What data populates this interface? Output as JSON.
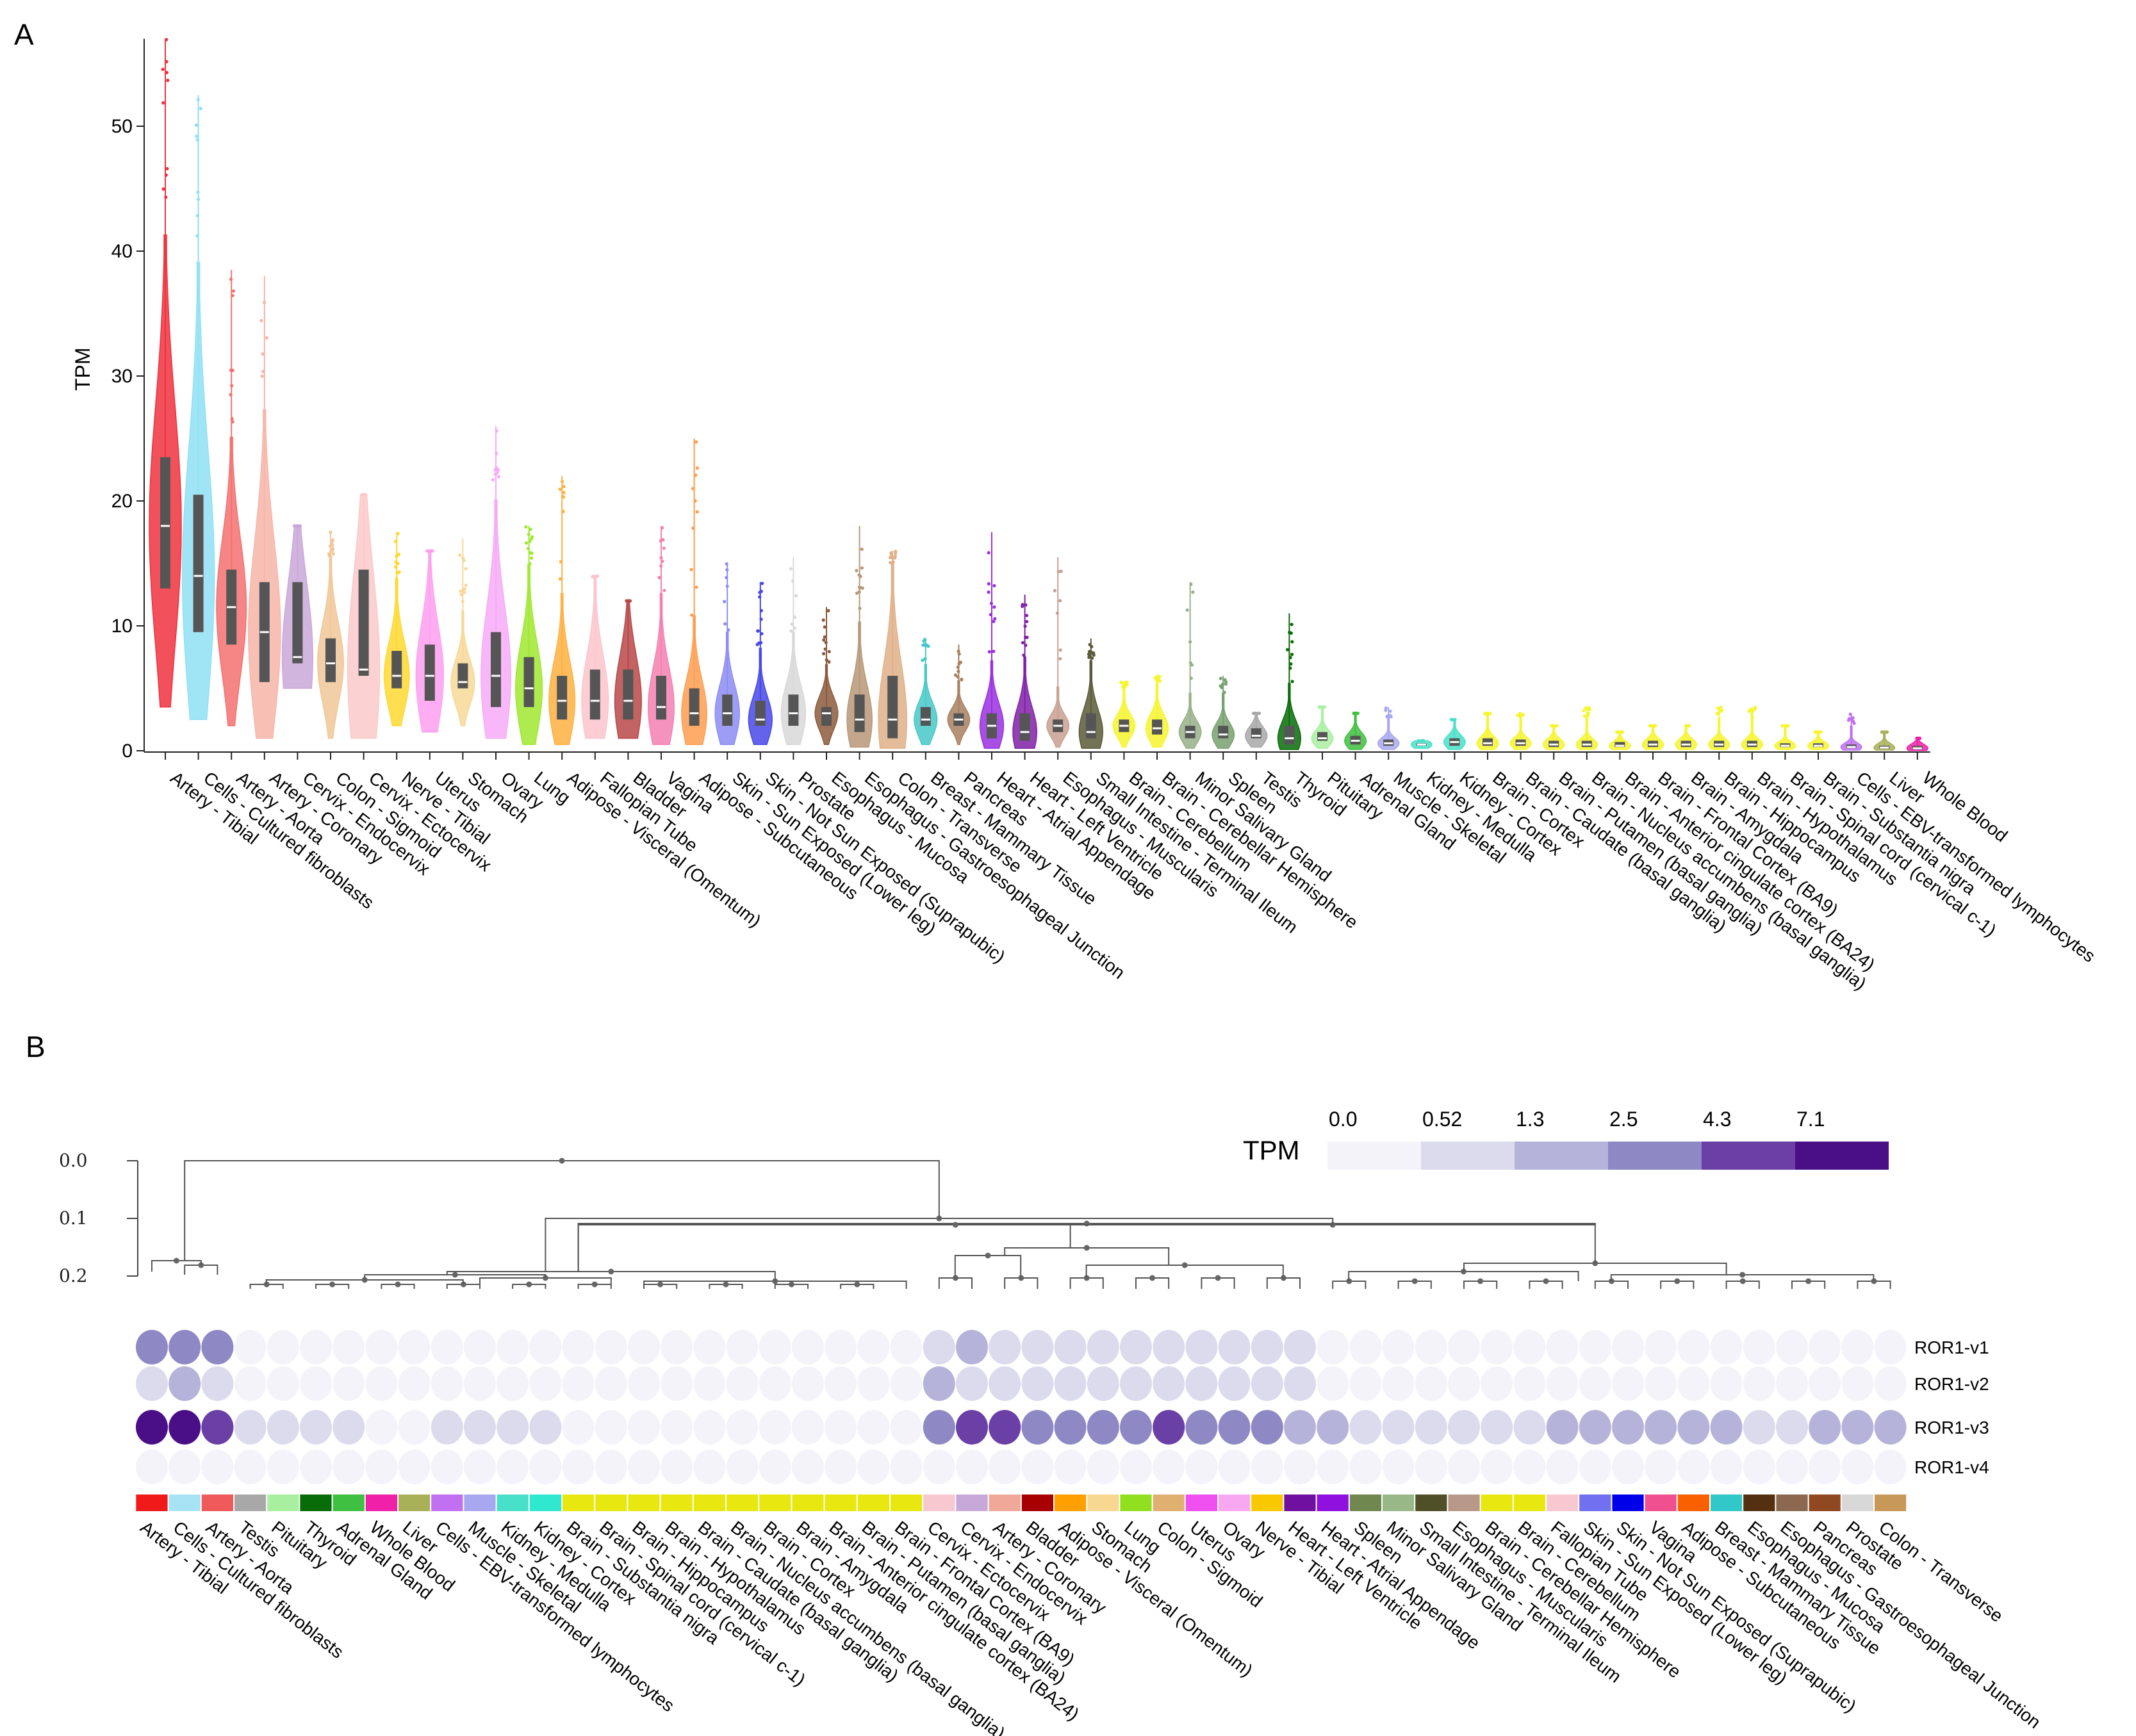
{
  "panels": {
    "a_label": "A",
    "b_label": "B"
  },
  "chart_data": [
    {
      "type": "violin",
      "ylabel": "TPM",
      "ylim": [
        0,
        57
      ],
      "yticks": [
        0,
        10,
        20,
        30,
        40,
        50
      ],
      "categories": [
        {
          "name": "Artery - Tibial",
          "color": "#f0313d",
          "q1": 13,
          "median": 18,
          "q3": 23.5,
          "max": 57,
          "min": 3.5
        },
        {
          "name": "Cells - Cultured fibroblasts",
          "color": "#8fe0f5",
          "q1": 9.5,
          "median": 14,
          "q3": 20.5,
          "max": 52.5,
          "min": 2.5
        },
        {
          "name": "Artery - Aorta",
          "color": "#f57070",
          "q1": 8.5,
          "median": 11.5,
          "q3": 14.5,
          "max": 38.5,
          "min": 2
        },
        {
          "name": "Artery - Coronary",
          "color": "#f7b5a8",
          "q1": 5.5,
          "median": 9.5,
          "q3": 13.5,
          "max": 38,
          "min": 1
        },
        {
          "name": "Cervix - Endocervix",
          "color": "#c9a8d8",
          "q1": 7,
          "median": 7.5,
          "q3": 13.5,
          "max": 18,
          "min": 5
        },
        {
          "name": "Colon - Sigmoid",
          "color": "#f0c798",
          "q1": 5.5,
          "median": 7,
          "q3": 9,
          "max": 17.5,
          "min": 1
        },
        {
          "name": "Cervix - Ectocervix",
          "color": "#fbc9c9",
          "q1": 6,
          "median": 6.5,
          "q3": 14.5,
          "max": 20.5,
          "min": 1
        },
        {
          "name": "Nerve - Tibial",
          "color": "#ffd830",
          "q1": 5,
          "median": 6,
          "q3": 8,
          "max": 17.5,
          "min": 2
        },
        {
          "name": "Uterus",
          "color": "#ff9ff0",
          "q1": 4,
          "median": 6,
          "q3": 8.5,
          "max": 16,
          "min": 1.5
        },
        {
          "name": "Stomach",
          "color": "#f7d898",
          "q1": 5,
          "median": 5.5,
          "q3": 7,
          "max": 17,
          "min": 2
        },
        {
          "name": "Ovary",
          "color": "#f7aaf7",
          "q1": 3.5,
          "median": 6,
          "q3": 9.5,
          "max": 26,
          "min": 1
        },
        {
          "name": "Lung",
          "color": "#9fe830",
          "q1": 3.5,
          "median": 5,
          "q3": 7.5,
          "max": 18,
          "min": 0.5
        },
        {
          "name": "Adipose - Visceral (Omentum)",
          "color": "#ffb040",
          "q1": 2.5,
          "median": 4,
          "q3": 6,
          "max": 22,
          "min": 0.5
        },
        {
          "name": "Fallopian Tube",
          "color": "#fbc5cc",
          "q1": 2.5,
          "median": 4,
          "q3": 6.5,
          "max": 14,
          "min": 1
        },
        {
          "name": "Bladder",
          "color": "#b84848",
          "q1": 2.5,
          "median": 4,
          "q3": 6.5,
          "max": 12,
          "min": 1
        },
        {
          "name": "Vagina",
          "color": "#f580b0",
          "q1": 2.5,
          "median": 3.5,
          "q3": 6,
          "max": 18,
          "min": 0.5
        },
        {
          "name": "Adipose - Subcutaneous",
          "color": "#ff9d50",
          "q1": 2,
          "median": 3,
          "q3": 5,
          "max": 25,
          "min": 0.5
        },
        {
          "name": "Skin - Sun Exposed (Lower leg)",
          "color": "#8c8cf5",
          "q1": 2,
          "median": 3,
          "q3": 4.5,
          "max": 15,
          "min": 0.5
        },
        {
          "name": "Skin - Not Sun Exposed (Suprapubic)",
          "color": "#4848e8",
          "q1": 2,
          "median": 2.5,
          "q3": 4,
          "max": 13.5,
          "min": 0.5
        },
        {
          "name": "Prostate",
          "color": "#d8d8d8",
          "q1": 2,
          "median": 3,
          "q3": 4.5,
          "max": 15.5,
          "min": 0.5
        },
        {
          "name": "Esophagus - Mucosa",
          "color": "#8c5a3c",
          "q1": 2,
          "median": 3,
          "q3": 3.5,
          "max": 11.5,
          "min": 0.5
        },
        {
          "name": "Esophagus - Gastroesophageal Junction",
          "color": "#b89878",
          "q1": 1.5,
          "median": 2.5,
          "q3": 4.5,
          "max": 18,
          "min": 0.3
        },
        {
          "name": "Colon - Transverse",
          "color": "#e0b088",
          "q1": 1,
          "median": 2.5,
          "q3": 6,
          "max": 16,
          "min": 0.2
        },
        {
          "name": "Breast - Mammary Tissue",
          "color": "#48c8c8",
          "q1": 2,
          "median": 2.5,
          "q3": 3.5,
          "max": 9,
          "min": 0.5
        },
        {
          "name": "Pancreas",
          "color": "#a88060",
          "q1": 2,
          "median": 2.5,
          "q3": 3,
          "max": 8.5,
          "min": 0.5
        },
        {
          "name": "Heart - Atrial Appendage",
          "color": "#9930e0",
          "q1": 1,
          "median": 2,
          "q3": 3,
          "max": 17.5,
          "min": 0.2
        },
        {
          "name": "Heart - Left Ventricle",
          "color": "#8020a8",
          "q1": 0.8,
          "median": 1.5,
          "q3": 3,
          "max": 12.5,
          "min": 0.2
        },
        {
          "name": "Esophagus - Muscularis",
          "color": "#c8a090",
          "q1": 1.5,
          "median": 2,
          "q3": 2.5,
          "max": 15.5,
          "min": 0.3
        },
        {
          "name": "Small Intestine - Terminal Ileum",
          "color": "#5a5a38",
          "q1": 1,
          "median": 1.5,
          "q3": 3,
          "max": 9,
          "min": 0.2
        },
        {
          "name": "Brain - Cerebellum",
          "color": "#f5f530",
          "q1": 1.5,
          "median": 2,
          "q3": 2.5,
          "max": 5.5,
          "min": 0.3
        },
        {
          "name": "Brain - Cerebellar Hemisphere",
          "color": "#f5f530",
          "q1": 1.3,
          "median": 1.8,
          "q3": 2.5,
          "max": 6,
          "min": 0.3
        },
        {
          "name": "Minor Salivary Gland",
          "color": "#98b088",
          "q1": 1,
          "median": 1.5,
          "q3": 2,
          "max": 13.5,
          "min": 0.2
        },
        {
          "name": "Spleen",
          "color": "#78a070",
          "q1": 1,
          "median": 1.3,
          "q3": 2,
          "max": 6,
          "min": 0.2
        },
        {
          "name": "Testis",
          "color": "#a8a8a8",
          "q1": 1,
          "median": 1.2,
          "q3": 1.8,
          "max": 3,
          "min": 0.3
        },
        {
          "name": "Thyroid",
          "color": "#086c08",
          "q1": 0.5,
          "median": 1,
          "q3": 2,
          "max": 11,
          "min": 0.1
        },
        {
          "name": "Pituitary",
          "color": "#a8f0a0",
          "q1": 0.8,
          "median": 1,
          "q3": 1.5,
          "max": 3.5,
          "min": 0.2
        },
        {
          "name": "Adrenal Gland",
          "color": "#40c040",
          "q1": 0.5,
          "median": 0.8,
          "q3": 1.2,
          "max": 3,
          "min": 0.1
        },
        {
          "name": "Muscle - Skeletal",
          "color": "#a8a8f0",
          "q1": 0.4,
          "median": 0.6,
          "q3": 0.9,
          "max": 3.5,
          "min": 0.1
        },
        {
          "name": "Kidney - Medulla",
          "color": "#48e0c8",
          "q1": 0.4,
          "median": 0.5,
          "q3": 0.6,
          "max": 0.8,
          "min": 0.2
        },
        {
          "name": "Kidney - Cortex",
          "color": "#48e0c8",
          "q1": 0.4,
          "median": 0.7,
          "q3": 1,
          "max": 2.5,
          "min": 0.1
        },
        {
          "name": "Brain - Cortex",
          "color": "#f5f530",
          "q1": 0.4,
          "median": 0.6,
          "q3": 1,
          "max": 3,
          "min": 0.1
        },
        {
          "name": "Brain - Caudate (basal ganglia)",
          "color": "#f5f530",
          "q1": 0.4,
          "median": 0.6,
          "q3": 0.9,
          "max": 3,
          "min": 0.1
        },
        {
          "name": "Brain - Putamen (basal ganglia)",
          "color": "#f5f530",
          "q1": 0.3,
          "median": 0.5,
          "q3": 0.8,
          "max": 2,
          "min": 0.1
        },
        {
          "name": "Brain - Nucleus accumbens (basal ganglia)",
          "color": "#f5f530",
          "q1": 0.3,
          "median": 0.5,
          "q3": 0.8,
          "max": 3.5,
          "min": 0.1
        },
        {
          "name": "Brain - Anterior cingulate cortex (BA24)",
          "color": "#f5f530",
          "q1": 0.3,
          "median": 0.4,
          "q3": 0.7,
          "max": 1.5,
          "min": 0.1
        },
        {
          "name": "Brain - Frontal Cortex (BA9)",
          "color": "#f5f530",
          "q1": 0.3,
          "median": 0.5,
          "q3": 0.8,
          "max": 2,
          "min": 0.1
        },
        {
          "name": "Brain - Amygdala",
          "color": "#f5f530",
          "q1": 0.3,
          "median": 0.5,
          "q3": 0.8,
          "max": 2,
          "min": 0.1
        },
        {
          "name": "Brain - Hippocampus",
          "color": "#f5f530",
          "q1": 0.3,
          "median": 0.5,
          "q3": 0.8,
          "max": 3.5,
          "min": 0.1
        },
        {
          "name": "Brain - Hypothalamus",
          "color": "#f5f530",
          "q1": 0.3,
          "median": 0.5,
          "q3": 0.8,
          "max": 3.5,
          "min": 0.1
        },
        {
          "name": "Brain - Spinal cord (cervical c-1)",
          "color": "#f5f530",
          "q1": 0.3,
          "median": 0.4,
          "q3": 0.6,
          "max": 2,
          "min": 0.1
        },
        {
          "name": "Brain - Substantia nigra",
          "color": "#f5f530",
          "q1": 0.3,
          "median": 0.4,
          "q3": 0.6,
          "max": 1.5,
          "min": 0.1
        },
        {
          "name": "Cells - EBV-transformed lymphocytes",
          "color": "#c070f0",
          "q1": 0.2,
          "median": 0.3,
          "q3": 0.5,
          "max": 3,
          "min": 0.05
        },
        {
          "name": "Liver",
          "color": "#a8b058",
          "q1": 0.15,
          "median": 0.25,
          "q3": 0.4,
          "max": 1.5,
          "min": 0.05
        },
        {
          "name": "Whole Blood",
          "color": "#f020a8",
          "q1": 0.1,
          "median": 0.2,
          "q3": 0.4,
          "max": 1,
          "min": 0.02
        }
      ]
    },
    {
      "type": "heatmap",
      "legend": {
        "title": "TPM",
        "ticks": [
          "0.0",
          "0.52",
          "1.3",
          "2.5",
          "4.3",
          "7.1"
        ],
        "colors": [
          "#f4f3fa",
          "#dcdbee",
          "#b6b3da",
          "#8e88c4",
          "#6a3fa6",
          "#4a0f86"
        ]
      },
      "dendrogram_ticks": [
        "0.0",
        "0.1",
        "0.2"
      ],
      "rows": [
        "ROR1-v1",
        "ROR1-v2",
        "ROR1-v3",
        "ROR1-v4"
      ],
      "columns": [
        {
          "name": "Artery - Tibial",
          "color": "#f01a1a"
        },
        {
          "name": "Cells - Cultured fibroblasts",
          "color": "#a6e4f5"
        },
        {
          "name": "Artery - Aorta",
          "color": "#f05a5a"
        },
        {
          "name": "Testis",
          "color": "#a8a8a8"
        },
        {
          "name": "Pituitary",
          "color": "#a8f0a0"
        },
        {
          "name": "Thyroid",
          "color": "#086c08"
        },
        {
          "name": "Adrenal Gland",
          "color": "#40c040"
        },
        {
          "name": "Whole Blood",
          "color": "#f020a8"
        },
        {
          "name": "Liver",
          "color": "#a8b058"
        },
        {
          "name": "Cells - EBV-transformed lymphocytes",
          "color": "#c070f0"
        },
        {
          "name": "Muscle - Skeletal",
          "color": "#a8a8f0"
        },
        {
          "name": "Kidney - Medulla",
          "color": "#48e0c8"
        },
        {
          "name": "Kidney - Cortex",
          "color": "#30e8d0"
        },
        {
          "name": "Brain - Substantia nigra",
          "color": "#e8e810"
        },
        {
          "name": "Brain - Spinal cord (cervical c-1)",
          "color": "#e8e810"
        },
        {
          "name": "Brain - Hippocampus",
          "color": "#e8e810"
        },
        {
          "name": "Brain - Hypothalamus",
          "color": "#e8e810"
        },
        {
          "name": "Brain - Caudate (basal ganglia)",
          "color": "#e8e810"
        },
        {
          "name": "Brain - Nucleus accumbens (basal ganglia)",
          "color": "#e8e810"
        },
        {
          "name": "Brain - Cortex",
          "color": "#e8e810"
        },
        {
          "name": "Brain - Amygdala",
          "color": "#e8e810"
        },
        {
          "name": "Brain - Anterior cingulate cortex (BA24)",
          "color": "#e8e810"
        },
        {
          "name": "Brain - Putamen (basal ganglia)",
          "color": "#e8e810"
        },
        {
          "name": "Brain - Frontal Cortex (BA9)",
          "color": "#e8e810"
        },
        {
          "name": "Cervix - Ectocervix",
          "color": "#f8c8d0"
        },
        {
          "name": "Cervix - Endocervix",
          "color": "#c8a8d8"
        },
        {
          "name": "Artery - Coronary",
          "color": "#f0a898"
        },
        {
          "name": "Bladder",
          "color": "#a80000"
        },
        {
          "name": "Adipose - Visceral (Omentum)",
          "color": "#ffa000"
        },
        {
          "name": "Stomach",
          "color": "#f8d890"
        },
        {
          "name": "Lung",
          "color": "#90e020"
        },
        {
          "name": "Colon - Sigmoid",
          "color": "#e0b070"
        },
        {
          "name": "Uterus",
          "color": "#f050f0"
        },
        {
          "name": "Ovary",
          "color": "#f8a8f0"
        },
        {
          "name": "Nerve - Tibial",
          "color": "#f8c800"
        },
        {
          "name": "Heart - Left Ventricle",
          "color": "#7010a0"
        },
        {
          "name": "Heart - Atrial Appendage",
          "color": "#9010e0"
        },
        {
          "name": "Spleen",
          "color": "#708850"
        },
        {
          "name": "Minor Salivary Gland",
          "color": "#98b888"
        },
        {
          "name": "Small Intestine - Terminal Ileum",
          "color": "#505028"
        },
        {
          "name": "Esophagus - Muscularis",
          "color": "#b89888"
        },
        {
          "name": "Brain - Cerebellar Hemisphere",
          "color": "#e8e810"
        },
        {
          "name": "Brain - Cerebellum",
          "color": "#e8e810"
        },
        {
          "name": "Fallopian Tube",
          "color": "#f8c8d0"
        },
        {
          "name": "Skin - Sun Exposed (Lower leg)",
          "color": "#7070f0"
        },
        {
          "name": "Skin - Not Sun Exposed (Suprapubic)",
          "color": "#0000e8"
        },
        {
          "name": "Vagina",
          "color": "#f05090"
        },
        {
          "name": "Adipose - Subcutaneous",
          "color": "#f86000"
        },
        {
          "name": "Breast - Mammary Tissue",
          "color": "#30c8c8"
        },
        {
          "name": "Esophagus - Mucosa",
          "color": "#553010"
        },
        {
          "name": "Esophagus - Gastroesophageal Junction",
          "color": "#8c6850"
        },
        {
          "name": "Pancreas",
          "color": "#904820"
        },
        {
          "name": "Prostate",
          "color": "#d8d8d8"
        },
        {
          "name": "Colon - Transverse",
          "color": "#c89858"
        }
      ],
      "values": {
        "ROR1-v1": [
          3,
          3,
          3,
          0,
          0,
          0,
          0,
          0,
          0,
          0,
          0,
          0,
          0,
          0,
          0,
          0,
          0,
          0,
          0,
          0,
          0,
          0,
          0,
          0,
          1,
          2,
          1,
          1,
          1,
          1,
          1,
          1,
          1,
          1,
          1,
          1,
          0,
          0,
          0,
          0,
          0,
          0,
          0,
          0,
          0,
          0,
          0,
          0,
          0,
          0,
          0,
          0,
          0,
          0
        ],
        "ROR1-v2": [
          1,
          2,
          1,
          0,
          0,
          0,
          0,
          0,
          0,
          0,
          0,
          0,
          0,
          0,
          0,
          0,
          0,
          0,
          0,
          0,
          0,
          0,
          0,
          0,
          2,
          1,
          1,
          1,
          1,
          1,
          1,
          1,
          1,
          1,
          1,
          1,
          0,
          0,
          0,
          0,
          0,
          0,
          0,
          0,
          0,
          0,
          0,
          0,
          0,
          0,
          0,
          0,
          0,
          0
        ],
        "ROR1-v3": [
          5,
          5,
          4,
          1,
          1,
          1,
          1,
          0,
          0,
          1,
          1,
          1,
          1,
          0,
          0,
          0,
          0,
          0,
          0,
          0,
          0,
          0,
          0,
          0,
          3,
          4,
          4,
          3,
          3,
          3,
          3,
          4,
          3,
          3,
          3,
          2,
          2,
          1,
          1,
          1,
          1,
          1,
          1,
          2,
          2,
          2,
          2,
          2,
          2,
          1,
          1,
          2,
          2,
          2
        ],
        "ROR1-v4": [
          0,
          0,
          0,
          0,
          0,
          0,
          0,
          0,
          0,
          0,
          0,
          0,
          0,
          0,
          0,
          0,
          0,
          0,
          0,
          0,
          0,
          0,
          0,
          0,
          0,
          0,
          0,
          0,
          0,
          0,
          0,
          0,
          0,
          0,
          0,
          0,
          0,
          0,
          0,
          0,
          0,
          0,
          0,
          0,
          0,
          0,
          0,
          0,
          0,
          0,
          0,
          0,
          0,
          0
        ]
      }
    }
  ]
}
